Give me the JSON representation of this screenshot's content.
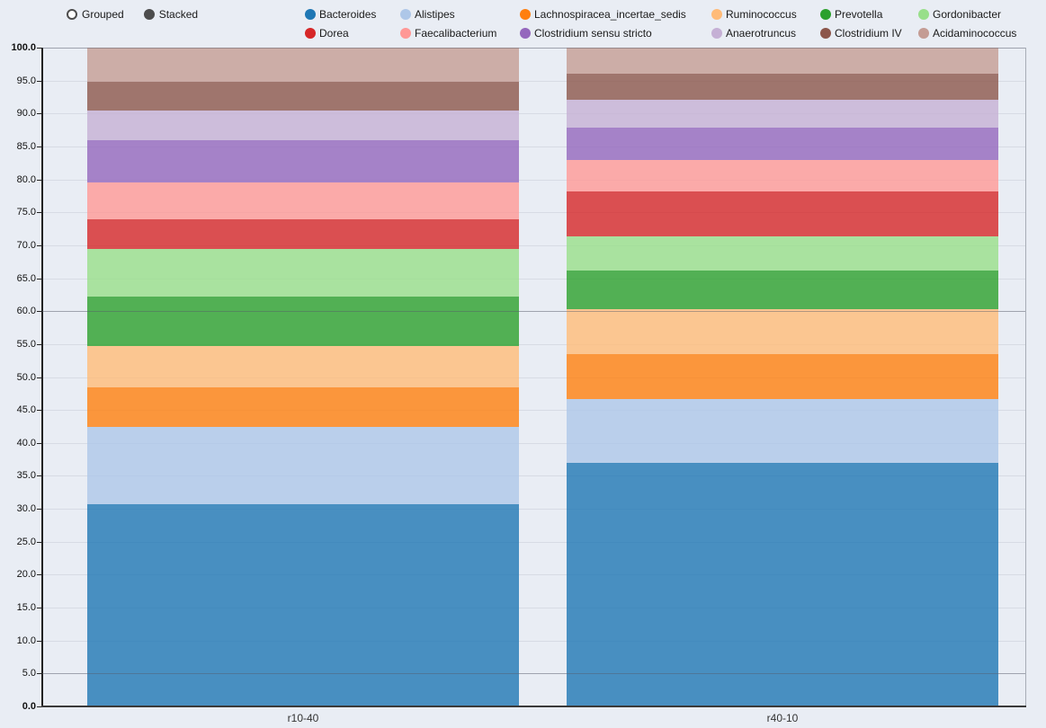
{
  "controls": {
    "grouped_label": "Grouped",
    "stacked_label": "Stacked",
    "selected": "Stacked"
  },
  "chart_data": {
    "type": "bar",
    "stacked": true,
    "orientation": "vertical",
    "categories": [
      "r10-40",
      "r40-10"
    ],
    "series": [
      {
        "name": "Bacteroides",
        "color": "#1f77b4",
        "values": [
          30.7,
          37.0
        ]
      },
      {
        "name": "Alistipes",
        "color": "#aec7e8",
        "values": [
          11.8,
          9.7
        ]
      },
      {
        "name": "Lachnospiracea_incertae_sedis",
        "color": "#ff7f0e",
        "values": [
          6.0,
          6.8
        ]
      },
      {
        "name": "Ruminococcus",
        "color": "#ffbb78",
        "values": [
          6.2,
          6.8
        ]
      },
      {
        "name": "Prevotella",
        "color": "#2ca02c",
        "values": [
          7.5,
          5.9
        ]
      },
      {
        "name": "Gordonibacter",
        "color": "#98df8a",
        "values": [
          7.3,
          5.2
        ]
      },
      {
        "name": "Dorea",
        "color": "#d62728",
        "values": [
          4.5,
          6.8
        ]
      },
      {
        "name": "Faecalibacterium",
        "color": "#ff9896",
        "values": [
          5.5,
          4.8
        ]
      },
      {
        "name": "Clostridium sensu stricto",
        "color": "#9467bd",
        "values": [
          6.5,
          4.8
        ]
      },
      {
        "name": "Anaerotruncus",
        "color": "#c5b0d5",
        "values": [
          4.5,
          4.3
        ]
      },
      {
        "name": "Clostridium IV",
        "color": "#8c564b",
        "values": [
          4.3,
          3.9
        ]
      },
      {
        "name": "Acidaminococcus",
        "color": "#c49c94",
        "values": [
          5.2,
          4.0
        ]
      }
    ],
    "title": "",
    "xlabel": "",
    "ylabel": "",
    "ylim": [
      0,
      100
    ],
    "yticks": [
      "0.0",
      "5.0",
      "10.0",
      "15.0",
      "20.0",
      "25.0",
      "30.0",
      "35.0",
      "40.0",
      "45.0",
      "50.0",
      "55.0",
      "60.0",
      "65.0",
      "70.0",
      "75.0",
      "80.0",
      "85.0",
      "90.0",
      "95.0",
      "100.0"
    ],
    "legend_position": "top",
    "grid": true
  }
}
